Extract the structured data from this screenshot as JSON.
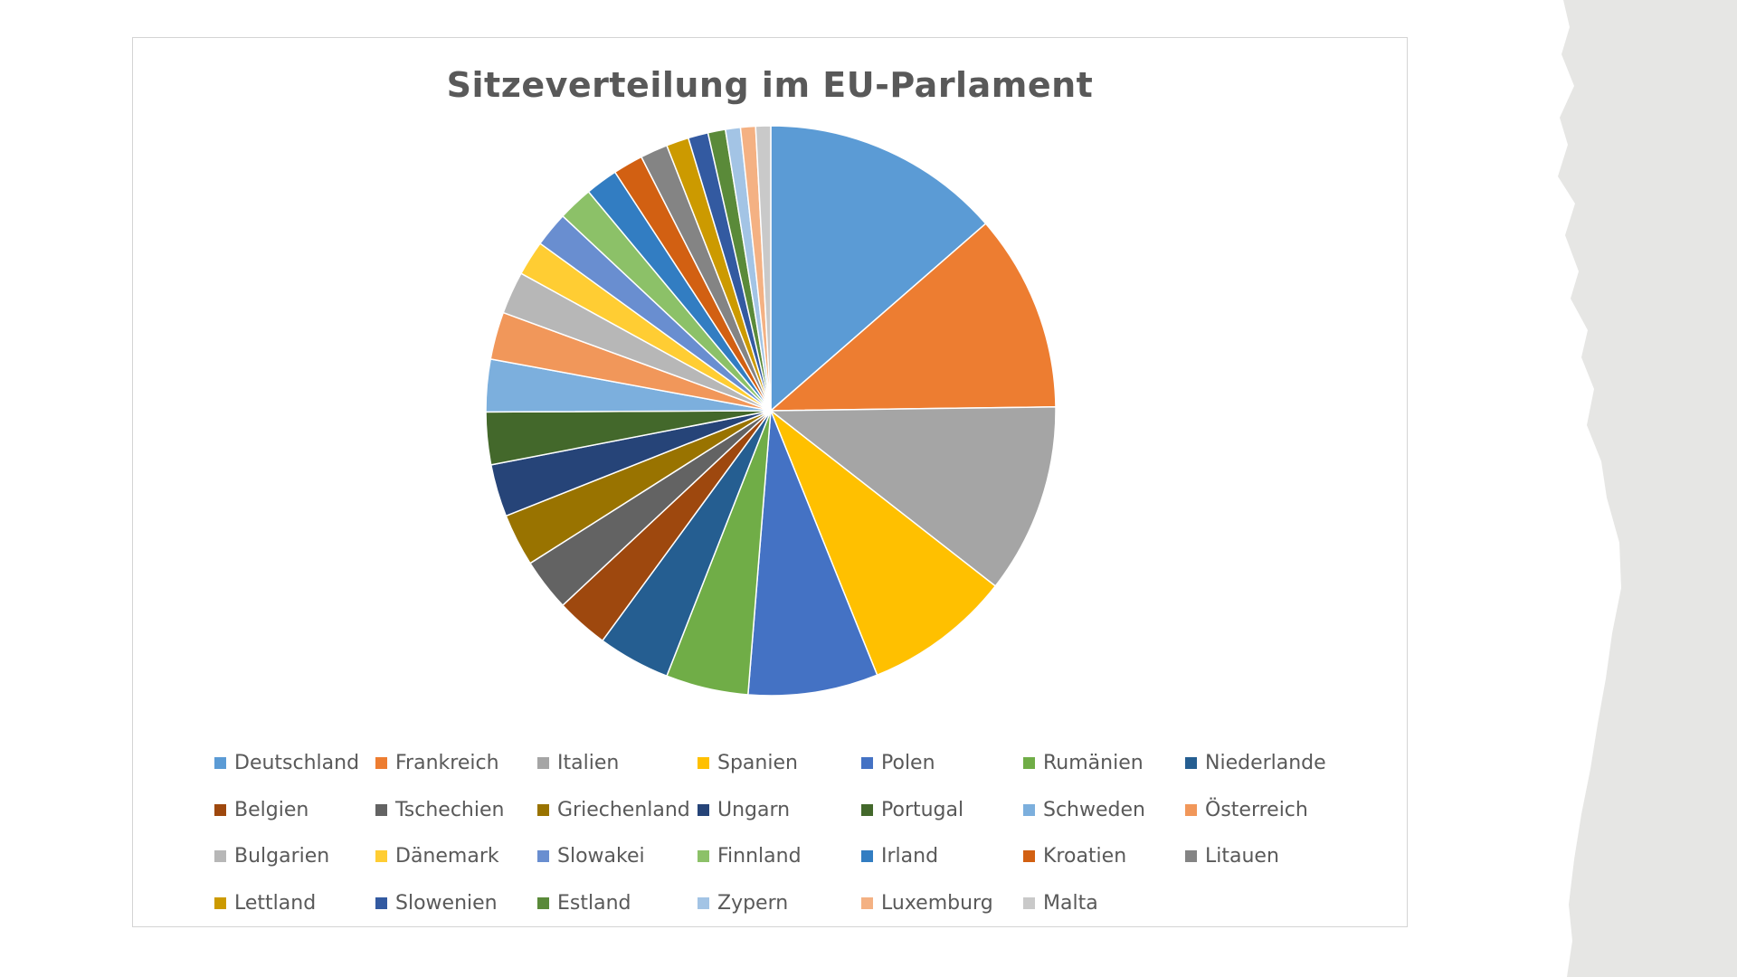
{
  "chart_data": {
    "type": "pie",
    "title": "Sitzeverteilung im EU-Parlament",
    "legend_position": "bottom",
    "categories": [
      "Deutschland",
      "Frankreich",
      "Italien",
      "Spanien",
      "Polen",
      "Rumänien",
      "Niederlande",
      "Belgien",
      "Tschechien",
      "Griechenland",
      "Ungarn",
      "Portugal",
      "Schweden",
      "Österreich",
      "Bulgarien",
      "Dänemark",
      "Slowakei",
      "Finnland",
      "Irland",
      "Kroatien",
      "Litauen",
      "Lettland",
      "Slowenien",
      "Estland",
      "Zypern",
      "Luxemburg",
      "Malta"
    ],
    "values": [
      96,
      79,
      76,
      59,
      52,
      33,
      29,
      21,
      21,
      21,
      21,
      21,
      21,
      19,
      17,
      14,
      14,
      14,
      13,
      12,
      11,
      9,
      8,
      7,
      6,
      6,
      6
    ],
    "colors": [
      "#5b9bd5",
      "#ed7d31",
      "#a5a5a5",
      "#ffc000",
      "#4472c4",
      "#70ad47",
      "#255e91",
      "#9e480e",
      "#636363",
      "#997300",
      "#264478",
      "#43682b",
      "#7cafdd",
      "#f1975a",
      "#b7b7b7",
      "#ffcd33",
      "#698ed0",
      "#8cc168",
      "#327dc2",
      "#d26012",
      "#848484",
      "#cc9a00",
      "#335aa1",
      "#5a8a39",
      "#a3c4e5",
      "#f4b183",
      "#c9c9c9"
    ]
  }
}
